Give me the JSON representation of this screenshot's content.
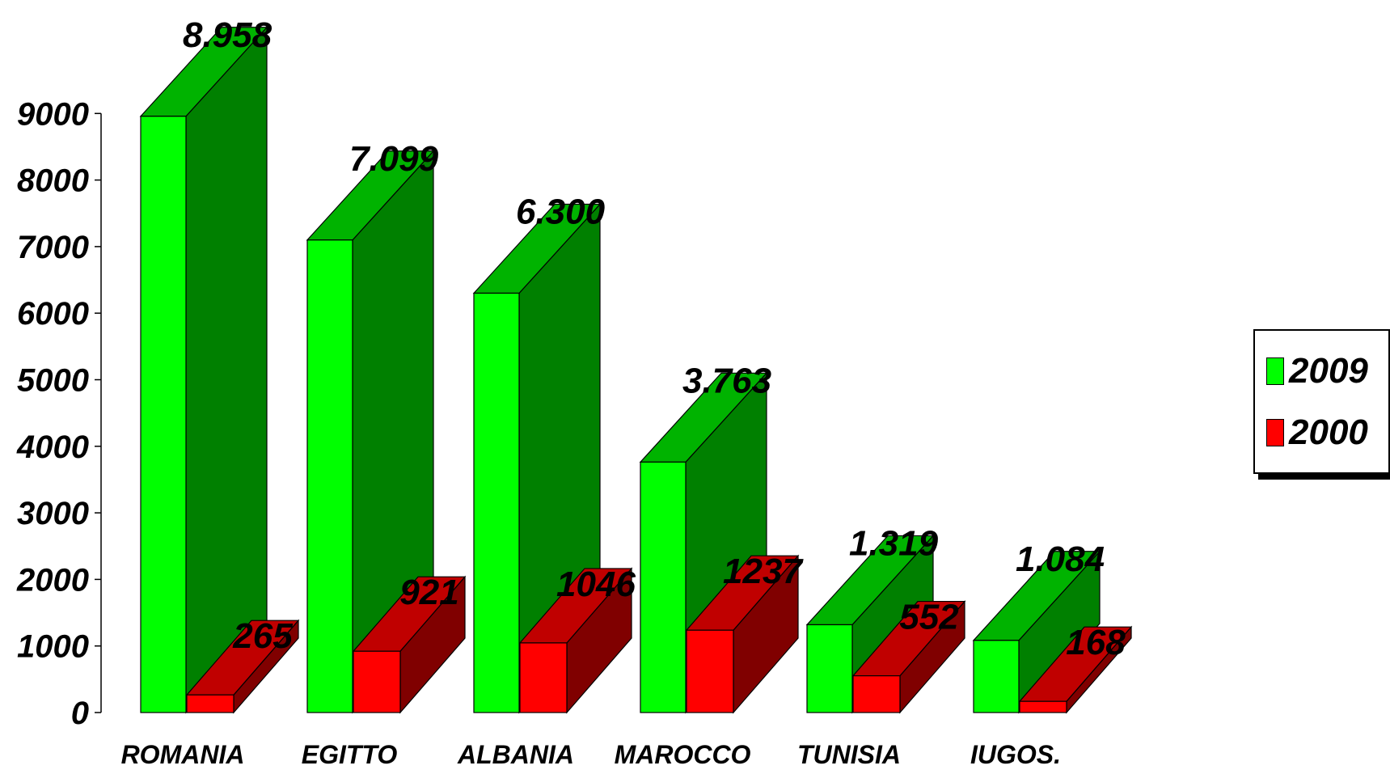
{
  "chart_data": {
    "type": "bar",
    "categories": [
      "ROMANIA",
      "EGITTO",
      "ALBANIA",
      "MAROCCO",
      "TUNISIA",
      "IUGOS."
    ],
    "series": [
      {
        "name": "2009",
        "values": [
          8958,
          7099,
          6300,
          3763,
          1319,
          1084
        ],
        "labels": [
          "8.958",
          "7.099",
          "6.300",
          "3.763",
          "1.319",
          "1.084"
        ],
        "color": "#00ff00",
        "side_color": "#008000",
        "top_color": "#00b300"
      },
      {
        "name": "2000",
        "values": [
          265,
          921,
          1046,
          1237,
          552,
          168
        ],
        "labels": [
          "265",
          "921",
          "1046",
          "1237",
          "552",
          "168"
        ],
        "color": "#ff0000",
        "side_color": "#800000",
        "top_color": "#c00000"
      }
    ],
    "yticks": [
      "0",
      "1000",
      "2000",
      "3000",
      "4000",
      "5000",
      "6000",
      "7000",
      "8000",
      "9000"
    ],
    "ylim": [
      0,
      9000
    ],
    "title": "",
    "xlabel": "",
    "ylabel": "",
    "grid": false,
    "legend_position": "right",
    "style": "3d"
  },
  "legend": {
    "items": [
      {
        "label": "2009",
        "color": "#00ff00"
      },
      {
        "label": "2000",
        "color": "#ff0000"
      }
    ]
  }
}
